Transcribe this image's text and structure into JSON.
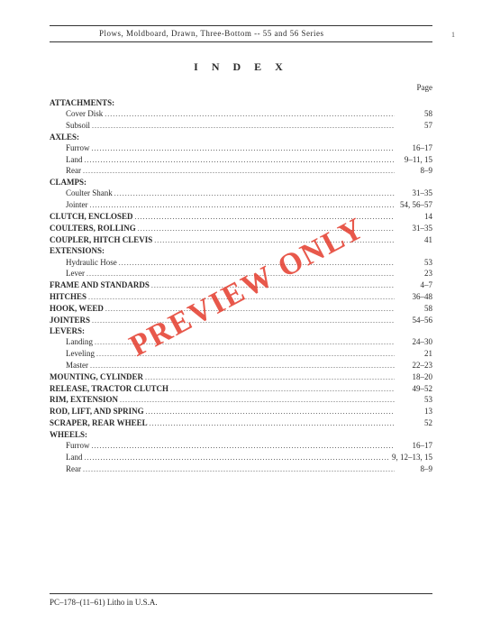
{
  "header": {
    "text": "Plows, Moldboard, Drawn, Three-Bottom -- 55 and 56 Series"
  },
  "corner_mark": "1",
  "index": {
    "title": "I N D E X",
    "page_label": "Page",
    "entries": [
      {
        "type": "section",
        "label": "ATTACHMENTS:",
        "page": ""
      },
      {
        "type": "sub",
        "label": "Cover Disk",
        "page": "58"
      },
      {
        "type": "sub",
        "label": "Subsoil",
        "page": "57"
      },
      {
        "type": "section",
        "label": "AXLES:",
        "page": ""
      },
      {
        "type": "sub",
        "label": "Furrow",
        "page": "16–17"
      },
      {
        "type": "sub",
        "label": "Land",
        "page": "9–11, 15"
      },
      {
        "type": "sub",
        "label": "Rear",
        "page": "8–9"
      },
      {
        "type": "section",
        "label": "CLAMPS:",
        "page": ""
      },
      {
        "type": "sub",
        "label": "Coulter Shank",
        "page": "31–35"
      },
      {
        "type": "sub",
        "label": "Jointer",
        "page": "54, 56–57"
      },
      {
        "type": "section",
        "label": "CLUTCH, ENCLOSED",
        "page": "14"
      },
      {
        "type": "section",
        "label": "COULTERS, ROLLING",
        "page": "31–35"
      },
      {
        "type": "section",
        "label": "COUPLER, HITCH CLEVIS",
        "page": "41"
      },
      {
        "type": "section",
        "label": "EXTENSIONS:",
        "page": ""
      },
      {
        "type": "sub",
        "label": "Hydraulic Hose",
        "page": "53"
      },
      {
        "type": "sub",
        "label": "Lever",
        "page": "23"
      },
      {
        "type": "section",
        "label": "FRAME AND STANDARDS",
        "page": "4–7"
      },
      {
        "type": "section",
        "label": "HITCHES",
        "page": "36–48"
      },
      {
        "type": "section",
        "label": "HOOK, WEED",
        "page": "58"
      },
      {
        "type": "section",
        "label": "JOINTERS",
        "page": "54–56"
      },
      {
        "type": "section",
        "label": "LEVERS:",
        "page": ""
      },
      {
        "type": "sub",
        "label": "Landing",
        "page": "24–30"
      },
      {
        "type": "sub",
        "label": "Leveling",
        "page": "21"
      },
      {
        "type": "sub",
        "label": "Master",
        "page": "22–23"
      },
      {
        "type": "section",
        "label": "MOUNTING, CYLINDER",
        "page": "18–20"
      },
      {
        "type": "section",
        "label": "RELEASE, TRACTOR CLUTCH",
        "page": "49–52"
      },
      {
        "type": "section",
        "label": "RIM, EXTENSION",
        "page": "53"
      },
      {
        "type": "section",
        "label": "ROD, LIFT, AND SPRING",
        "page": "13"
      },
      {
        "type": "section",
        "label": "SCRAPER, REAR WHEEL",
        "page": "52"
      },
      {
        "type": "section",
        "label": "WHEELS:",
        "page": ""
      },
      {
        "type": "sub",
        "label": "Furrow",
        "page": "16–17"
      },
      {
        "type": "sub",
        "label": "Land",
        "page": "9, 12–13, 15"
      },
      {
        "type": "sub",
        "label": "Rear",
        "page": "8–9"
      }
    ]
  },
  "watermark": {
    "text": "PREVIEW ONLY",
    "color": "#e43b2c"
  },
  "footer": {
    "text": "PC–178–(11–61)   Litho in U.S.A."
  }
}
